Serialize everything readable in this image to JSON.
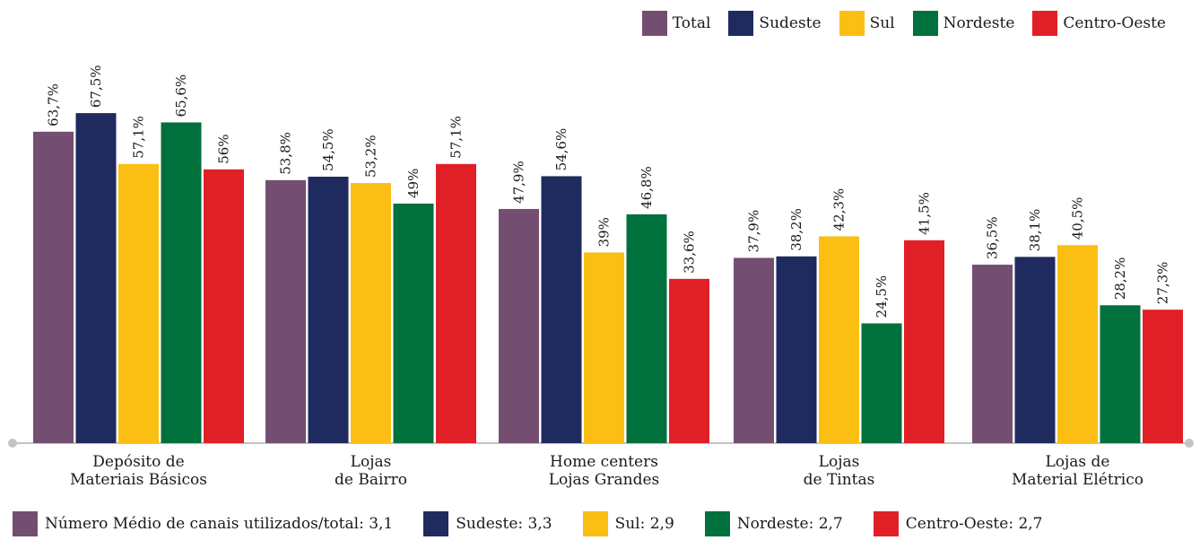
{
  "chart_data": {
    "type": "bar",
    "categories": [
      [
        "Depósito de",
        "Materiais Básicos"
      ],
      [
        "Lojas",
        "de Bairro"
      ],
      [
        "Home centers",
        "Lojas Grandes"
      ],
      [
        "Lojas",
        "de Tintas"
      ],
      [
        "Lojas de",
        "Material Elétrico"
      ]
    ],
    "series": [
      {
        "name": "Total",
        "color": "#744e70",
        "values": [
          63.7,
          53.8,
          47.9,
          37.9,
          36.5
        ],
        "labels": [
          "63,7%",
          "53,8%",
          "47,9%",
          "37,9%",
          "36,5%"
        ]
      },
      {
        "name": "Sudeste",
        "color": "#1f2a5e",
        "values": [
          67.5,
          54.5,
          54.6,
          38.2,
          38.1
        ],
        "labels": [
          "67,5%",
          "54,5%",
          "54,6%",
          "38,2%",
          "38,1%"
        ]
      },
      {
        "name": "Sul",
        "color": "#fbbf14",
        "values": [
          57.1,
          53.2,
          39,
          42.3,
          40.5
        ],
        "labels": [
          "57,1%",
          "53,2%",
          "39%",
          "42,3%",
          "40,5%"
        ]
      },
      {
        "name": "Nordeste",
        "color": "#00703c",
        "values": [
          65.6,
          49,
          46.8,
          24.5,
          28.2
        ],
        "labels": [
          "65,6%",
          "49%",
          "46,8%",
          "24,5%",
          "28,2%"
        ]
      },
      {
        "name": "Centro-Oeste",
        "color": "#e11f26",
        "values": [
          56,
          57.1,
          33.6,
          41.5,
          27.3
        ],
        "labels": [
          "56%",
          "57,1%",
          "33,6%",
          "41,5%",
          "27,3%"
        ]
      }
    ],
    "ylim": [
      0,
      75
    ],
    "legend_position": "top-right",
    "grid": false
  },
  "legend_top": [
    {
      "label": "Total",
      "color": "#744e70"
    },
    {
      "label": "Sudeste",
      "color": "#1f2a5e"
    },
    {
      "label": "Sul",
      "color": "#fbbf14"
    },
    {
      "label": "Nordeste",
      "color": "#00703c"
    },
    {
      "label": "Centro-Oeste",
      "color": "#e11f26"
    }
  ],
  "legend_bottom": [
    {
      "label": "Número Médio de canais utilizados/total: 3,1",
      "color": "#744e70"
    },
    {
      "label": "Sudeste: 3,3",
      "color": "#1f2a5e"
    },
    {
      "label": "Sul: 2,9",
      "color": "#fbbf14"
    },
    {
      "label": "Nordeste: 2,7",
      "color": "#00703c"
    },
    {
      "label": "Centro-Oeste: 2,7",
      "color": "#e11f26"
    }
  ],
  "axis_color": "#c4c4c4"
}
